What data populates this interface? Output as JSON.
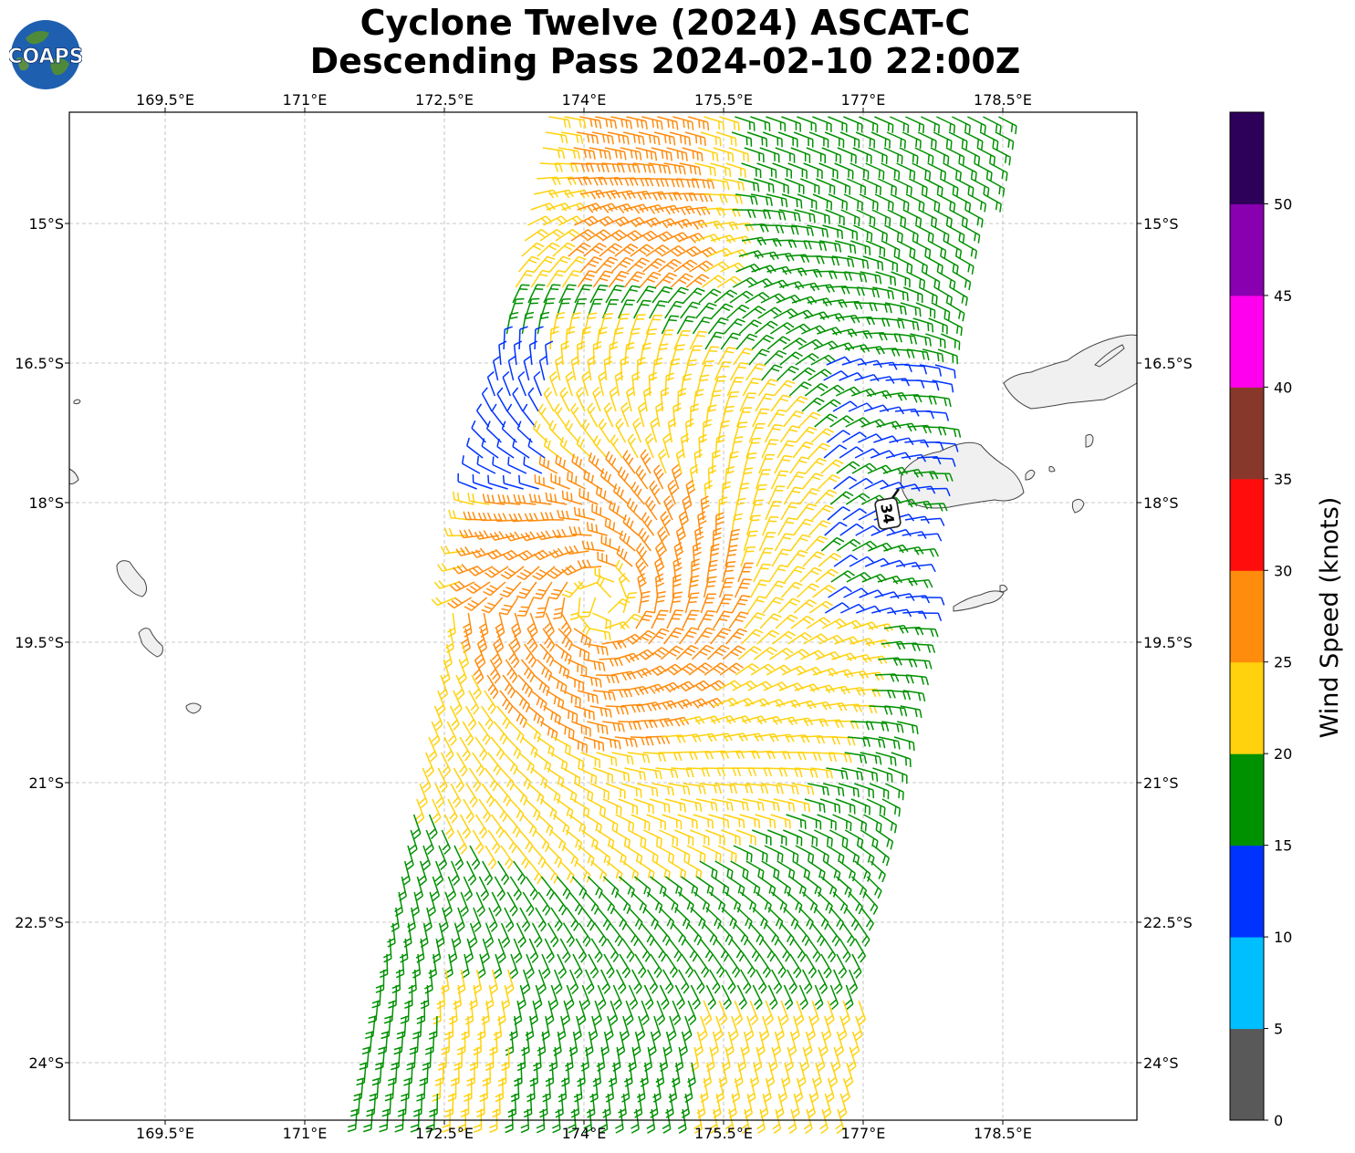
{
  "title": {
    "line1": "Cyclone Twelve (2024) ASCAT-C",
    "line2": "Descending Pass 2024-02-10 22:00Z"
  },
  "logo": {
    "text": "COAPS",
    "icon": "globe-logo"
  },
  "map": {
    "lon_ticks": [
      "169.5°E",
      "171°E",
      "172.5°E",
      "174°E",
      "175.5°E",
      "177°E",
      "178.5°E"
    ],
    "lat_ticks": [
      "15°S",
      "16.5°S",
      "18°S",
      "19.5°S",
      "21°S",
      "22.5°S",
      "24°S"
    ],
    "grid": true,
    "wind_barbs": "ASCAT-C wind vectors colored by speed",
    "marker_label": "34"
  },
  "colorbar": {
    "title": "Wind Speed (knots)",
    "ticks": [
      "0",
      "5",
      "10",
      "15",
      "20",
      "25",
      "30",
      "35",
      "40",
      "45",
      "50"
    ],
    "colors": [
      "#595959",
      "#00bfff",
      "#0033ff",
      "#009100",
      "#ffd20d",
      "#ff8c0d",
      "#ff0d0d",
      "#87382b",
      "#ff00ee",
      "#8800b0",
      "#2d0059"
    ]
  }
}
